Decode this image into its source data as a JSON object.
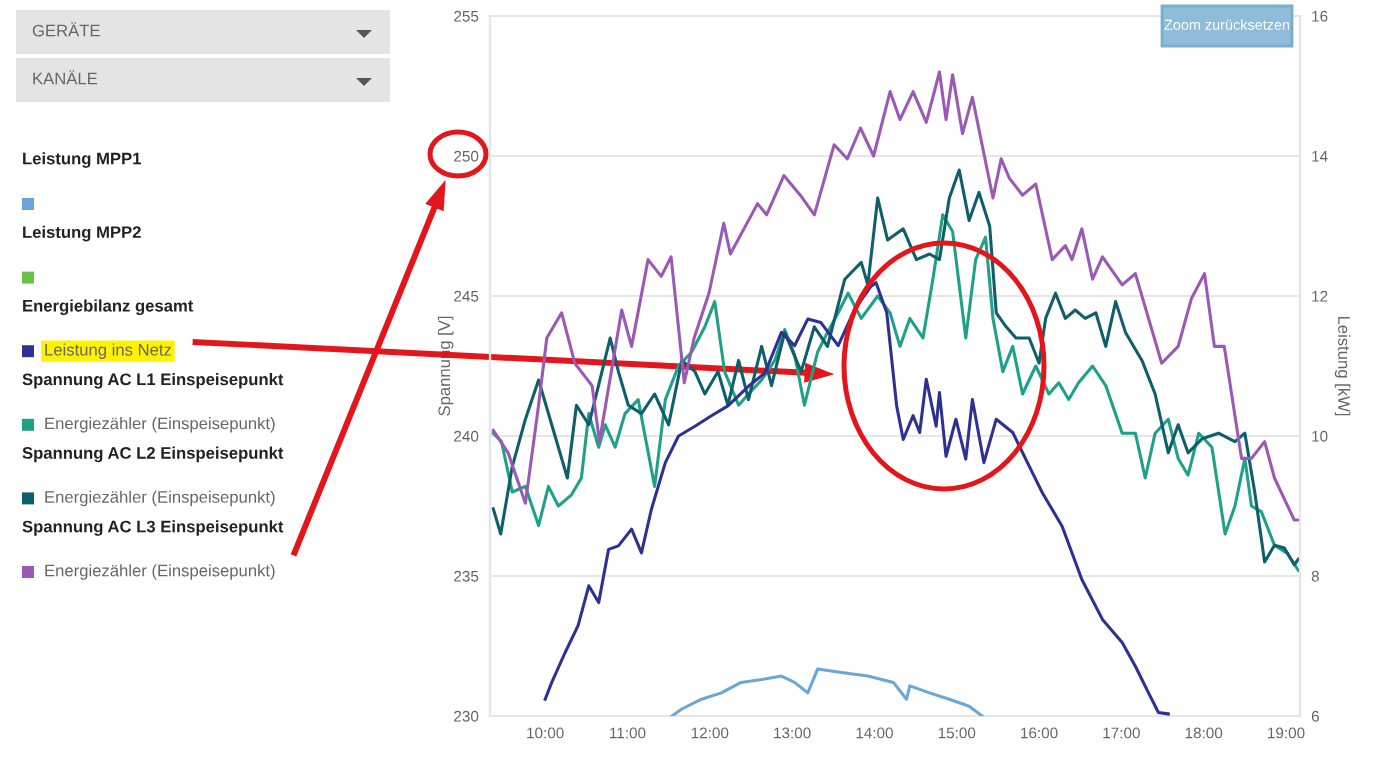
{
  "chart_data": {
    "type": "line",
    "annotations": [
      "GERÄTE",
      "KANÄLE",
      "Zoom zurücksetzen",
      "Leistung MPP1",
      "Leistung MPP2",
      "Energiebilanz gesamt",
      "Spannung AC L1 Einspeisepunkt",
      "Spannung AC L2 Einspeisepunkt",
      "Spannung AC L3 Einspeisepunkt"
    ],
    "ylabel": "Spannung [V]",
    "y2label": "Leistung [kW]",
    "xlim": [
      9.33,
      19.17
    ],
    "xticks": [
      {
        "value": 10,
        "label": "10:00"
      },
      {
        "value": 11,
        "label": "11:00"
      },
      {
        "value": 12,
        "label": "12:00"
      },
      {
        "value": 13,
        "label": "13:00"
      },
      {
        "value": 14,
        "label": "14:00"
      },
      {
        "value": 15,
        "label": "15:00"
      },
      {
        "value": 16,
        "label": "16:00"
      },
      {
        "value": 17,
        "label": "17:00"
      },
      {
        "value": 18,
        "label": "18:00"
      },
      {
        "value": 19,
        "label": "19:00"
      }
    ],
    "ylim": [
      230,
      255
    ],
    "yticks": [
      230,
      235,
      240,
      245,
      250,
      255
    ],
    "y2lim": [
      6,
      16
    ],
    "y2ticks": [
      6,
      8,
      10,
      12,
      14,
      16
    ],
    "grid": "y",
    "legend": "left",
    "marker": "none",
    "line_style": "solid",
    "series": [
      {
        "color": "#6aa6d6",
        "axis": "y2",
        "x": [
          11.54,
          11.66,
          11.9,
          12.14,
          12.38,
          12.63,
          12.87,
          13.03,
          13.19,
          13.31,
          13.6,
          13.92,
          14.23,
          14.39,
          14.43,
          14.67,
          14.91,
          15.15,
          15.31
        ],
        "values": [
          6.0,
          6.1,
          6.24,
          6.33,
          6.48,
          6.52,
          6.57,
          6.48,
          6.33,
          6.67,
          6.62,
          6.57,
          6.48,
          6.24,
          6.43,
          6.33,
          6.24,
          6.14,
          6.0
        ]
      },
      {
        "color": "#6cc04a",
        "axis": "y2"
      },
      {
        "name": "Leistung ins Netz",
        "color": "#2e3192",
        "axis": "y2",
        "x": [
          10.0,
          10.08,
          10.24,
          10.4,
          10.53,
          10.65,
          10.77,
          10.89,
          11.05,
          11.17,
          11.29,
          11.46,
          11.62,
          11.82,
          12.02,
          12.22,
          12.47,
          12.67,
          12.87,
          13.03,
          13.19,
          13.35,
          13.56,
          13.76,
          13.96,
          14.02,
          14.15,
          14.27,
          14.35,
          14.47,
          14.55,
          14.63,
          14.75,
          14.79,
          14.87,
          14.99,
          15.11,
          15.19,
          15.33,
          15.48,
          15.68,
          15.88,
          16.04,
          16.28,
          16.52,
          16.77,
          17.01,
          17.17,
          17.33,
          17.45,
          17.57
        ],
        "values": [
          6.24,
          6.48,
          6.9,
          7.29,
          7.86,
          7.62,
          8.38,
          8.43,
          8.67,
          8.33,
          8.95,
          9.62,
          10.0,
          10.14,
          10.29,
          10.43,
          10.71,
          10.9,
          11.48,
          11.29,
          11.67,
          11.62,
          11.29,
          11.81,
          12.14,
          12.19,
          11.76,
          10.43,
          9.95,
          10.29,
          10.05,
          10.81,
          10.14,
          10.62,
          9.71,
          10.24,
          9.67,
          10.52,
          9.62,
          10.24,
          10.05,
          9.57,
          9.19,
          8.71,
          7.95,
          7.38,
          7.05,
          6.71,
          6.33,
          6.05,
          6.03
        ]
      },
      {
        "name": "Energiezähler (Einspeisepunkt)",
        "color": "#1fa187",
        "x": [
          9.37,
          9.47,
          9.6,
          9.76,
          9.92,
          10.04,
          10.16,
          10.32,
          10.44,
          10.53,
          10.65,
          10.73,
          10.85,
          10.97,
          11.13,
          11.33,
          11.46,
          11.62,
          11.78,
          11.94,
          12.06,
          12.18,
          12.35,
          12.47,
          12.63,
          12.79,
          12.91,
          13.03,
          13.15,
          13.31,
          13.43,
          13.56,
          13.68,
          13.84,
          14.04,
          14.19,
          14.31,
          14.43,
          14.59,
          14.71,
          14.83,
          14.95,
          15.11,
          15.23,
          15.35,
          15.44,
          15.56,
          15.68,
          15.8,
          15.96,
          16.12,
          16.24,
          16.36,
          16.48,
          16.65,
          16.81,
          17.01,
          17.17,
          17.29,
          17.41,
          17.57,
          17.69,
          17.81,
          17.94,
          18.1,
          18.26,
          18.38,
          18.5,
          18.58,
          18.7,
          18.86,
          19.02,
          19.15
        ],
        "values": [
          240.1,
          239.8,
          238.0,
          238.2,
          236.8,
          238.2,
          237.5,
          237.9,
          238.5,
          240.8,
          239.6,
          240.4,
          239.6,
          240.8,
          241.3,
          238.2,
          241.3,
          242.5,
          243.0,
          243.9,
          244.8,
          242.3,
          241.1,
          241.5,
          242.0,
          242.7,
          243.8,
          242.9,
          241.1,
          243.0,
          243.7,
          244.4,
          245.1,
          244.2,
          245.0,
          244.4,
          243.2,
          244.2,
          243.5,
          245.6,
          247.9,
          247.3,
          243.5,
          246.3,
          247.1,
          244.2,
          242.3,
          243.2,
          241.5,
          242.5,
          241.5,
          241.9,
          241.3,
          241.9,
          242.5,
          241.8,
          240.1,
          240.1,
          238.5,
          240.1,
          240.6,
          239.2,
          238.6,
          240.1,
          239.6,
          236.5,
          237.5,
          239.2,
          237.5,
          237.3,
          236.1,
          235.8,
          235.2
        ]
      },
      {
        "name": "Energiezähler (Einspeisepunkt)",
        "color": "#0f5e6b",
        "x": [
          9.37,
          9.46,
          9.6,
          9.76,
          9.92,
          10.08,
          10.27,
          10.38,
          10.53,
          10.69,
          10.79,
          10.89,
          11.01,
          11.17,
          11.33,
          11.5,
          11.66,
          11.82,
          11.94,
          12.1,
          12.22,
          12.35,
          12.47,
          12.63,
          12.75,
          12.91,
          13.11,
          13.27,
          13.43,
          13.64,
          13.84,
          13.92,
          14.04,
          14.16,
          14.35,
          14.51,
          14.67,
          14.79,
          14.91,
          15.03,
          15.15,
          15.27,
          15.4,
          15.48,
          15.6,
          15.72,
          15.88,
          16.0,
          16.08,
          16.2,
          16.32,
          16.44,
          16.56,
          16.69,
          16.81,
          16.93,
          17.05,
          17.25,
          17.41,
          17.57,
          17.69,
          17.81,
          17.98,
          18.18,
          18.38,
          18.5,
          18.62,
          18.74,
          18.86,
          18.98,
          19.1,
          19.15
        ],
        "values": [
          237.4,
          236.5,
          238.9,
          240.6,
          242.0,
          240.4,
          238.5,
          241.1,
          240.4,
          242.3,
          243.5,
          242.3,
          241.1,
          240.8,
          241.5,
          240.4,
          242.7,
          242.3,
          241.5,
          242.3,
          241.1,
          242.7,
          241.3,
          243.2,
          241.8,
          243.7,
          242.3,
          243.9,
          243.2,
          245.6,
          246.2,
          245.4,
          248.5,
          247.0,
          247.4,
          246.3,
          246.5,
          246.3,
          248.5,
          249.5,
          247.7,
          248.7,
          247.5,
          244.4,
          243.9,
          243.5,
          243.5,
          242.6,
          244.2,
          245.1,
          244.2,
          244.5,
          244.2,
          244.4,
          243.2,
          244.8,
          243.7,
          242.7,
          241.5,
          239.4,
          240.4,
          239.4,
          239.9,
          240.1,
          239.8,
          240.1,
          238.0,
          235.5,
          236.1,
          236.0,
          235.4,
          235.6
        ]
      },
      {
        "name": "Energiezähler (Einspeisepunkt)",
        "color": "#9b59b6",
        "x": [
          9.37,
          9.55,
          9.76,
          9.92,
          10.02,
          10.2,
          10.36,
          10.57,
          10.66,
          10.93,
          11.05,
          11.25,
          11.41,
          11.53,
          11.69,
          11.81,
          11.99,
          12.17,
          12.25,
          12.58,
          12.69,
          12.9,
          13.1,
          13.27,
          13.51,
          13.67,
          13.83,
          13.99,
          14.19,
          14.31,
          14.47,
          14.63,
          14.79,
          14.87,
          14.95,
          15.07,
          15.19,
          15.44,
          15.54,
          15.64,
          15.8,
          15.96,
          16.16,
          16.32,
          16.4,
          16.52,
          16.65,
          16.77,
          17.01,
          17.17,
          17.49,
          17.69,
          17.85,
          18.01,
          18.13,
          18.25,
          18.46,
          18.58,
          18.74,
          18.86,
          19.1,
          19.15
        ],
        "values": [
          240.2,
          239.4,
          237.6,
          241.1,
          243.5,
          244.4,
          242.6,
          241.8,
          239.8,
          244.5,
          243.2,
          246.3,
          245.7,
          246.4,
          241.9,
          243.5,
          245.1,
          247.6,
          246.5,
          248.3,
          247.9,
          249.3,
          248.6,
          247.9,
          250.4,
          249.9,
          251.0,
          250.0,
          252.3,
          251.3,
          252.3,
          251.2,
          253.0,
          251.3,
          252.9,
          250.8,
          252.1,
          248.5,
          249.9,
          249.2,
          248.6,
          249.0,
          246.3,
          246.8,
          246.3,
          247.4,
          245.6,
          246.4,
          245.4,
          245.8,
          242.6,
          243.2,
          244.9,
          245.8,
          243.2,
          243.2,
          239.2,
          239.2,
          239.8,
          238.5,
          237.0,
          237.0
        ]
      }
    ]
  }
}
